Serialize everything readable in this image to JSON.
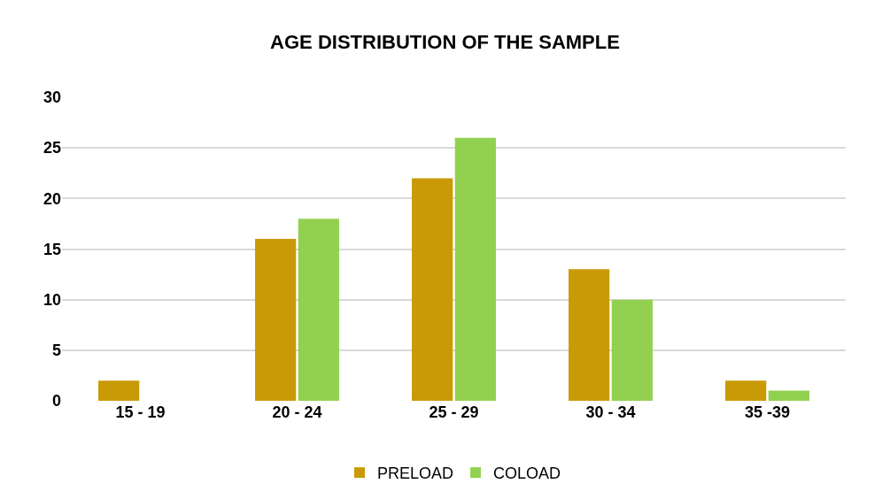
{
  "chart_data": {
    "type": "bar",
    "title": "AGE DISTRIBUTION OF THE SAMPLE",
    "categories": [
      "15 - 19",
      "20 - 24",
      "25 - 29",
      "30 - 34",
      "35 -39"
    ],
    "series": [
      {
        "name": "PRELOAD",
        "color": "#c99a06",
        "values": [
          2,
          16,
          22,
          13,
          2
        ]
      },
      {
        "name": "COLOAD",
        "color": "#92d050",
        "values": [
          0,
          18,
          26,
          10,
          1
        ]
      }
    ],
    "ylim": [
      0,
      30
    ],
    "yticks": [
      0,
      5,
      10,
      15,
      20,
      25,
      30
    ],
    "grid": "y",
    "legend": "bottom"
  }
}
